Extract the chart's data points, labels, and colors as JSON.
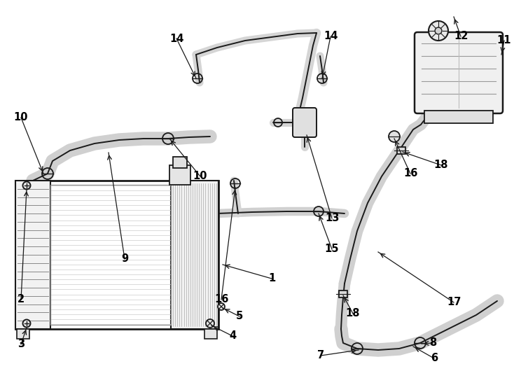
{
  "bg_color": "#ffffff",
  "line_color": "#1a1a1a",
  "fig_w": 7.34,
  "fig_h": 5.4,
  "dpi": 100
}
